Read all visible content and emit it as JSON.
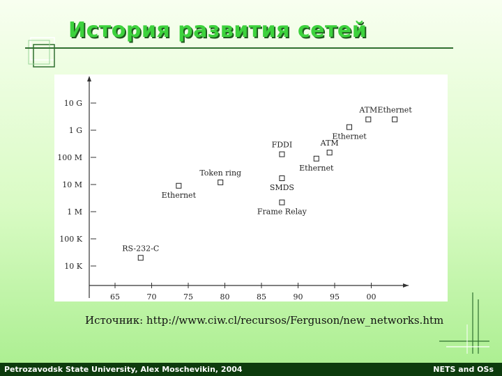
{
  "slide": {
    "title": "История развития сетей",
    "source": "Источник: http://www.ciw.cl/recursos/Ferguson/new_networks.htm",
    "footer_left": "Petrozavodsk State University, Alex Moschevikin, 2004",
    "footer_right": "NETS and OSs",
    "colors": {
      "title": "#3dd23d",
      "footer_bg": "#0d3b0d",
      "rule": "#2f6f2f"
    }
  },
  "chart_data": {
    "type": "scatter",
    "title": "",
    "xlabel": "",
    "ylabel": "",
    "x_ticks": [
      "65",
      "70",
      "75",
      "80",
      "85",
      "90",
      "95",
      "00"
    ],
    "y_ticks": [
      "10 K",
      "100 K",
      "1 M",
      "10 M",
      "100 M",
      "1 G",
      "10 G"
    ],
    "grid": false,
    "points": [
      {
        "label": "RS-232-C",
        "year": 1968.5,
        "level": "20 K",
        "label_pos": "above"
      },
      {
        "label": "Ethernet",
        "year": 1973.7,
        "level": "9 M",
        "label_pos": "below"
      },
      {
        "label": "Token ring",
        "year": 1979.4,
        "level": "12 M",
        "label_pos": "above"
      },
      {
        "label": "FDDI",
        "year": 1987.8,
        "level": "130 M",
        "label_pos": "above"
      },
      {
        "label": "SMDS",
        "year": 1987.8,
        "level": "17 M",
        "label_pos": "below"
      },
      {
        "label": "Frame Relay",
        "year": 1987.8,
        "level": "2.2 M",
        "label_pos": "below"
      },
      {
        "label": "Ethernet",
        "year": 1992.5,
        "level": "90 M",
        "label_pos": "below"
      },
      {
        "label": "ATM",
        "year": 1994.3,
        "level": "150 M",
        "label_pos": "above"
      },
      {
        "label": "Ethernet",
        "year": 1997.0,
        "level": "1.3 G",
        "label_pos": "below"
      },
      {
        "label": "ATM",
        "year": 1999.6,
        "level": "2.5 G",
        "label_pos": "above"
      },
      {
        "label": "Ethernet",
        "year": 2003.2,
        "level": "2.5 G",
        "label_pos": "above"
      }
    ]
  }
}
